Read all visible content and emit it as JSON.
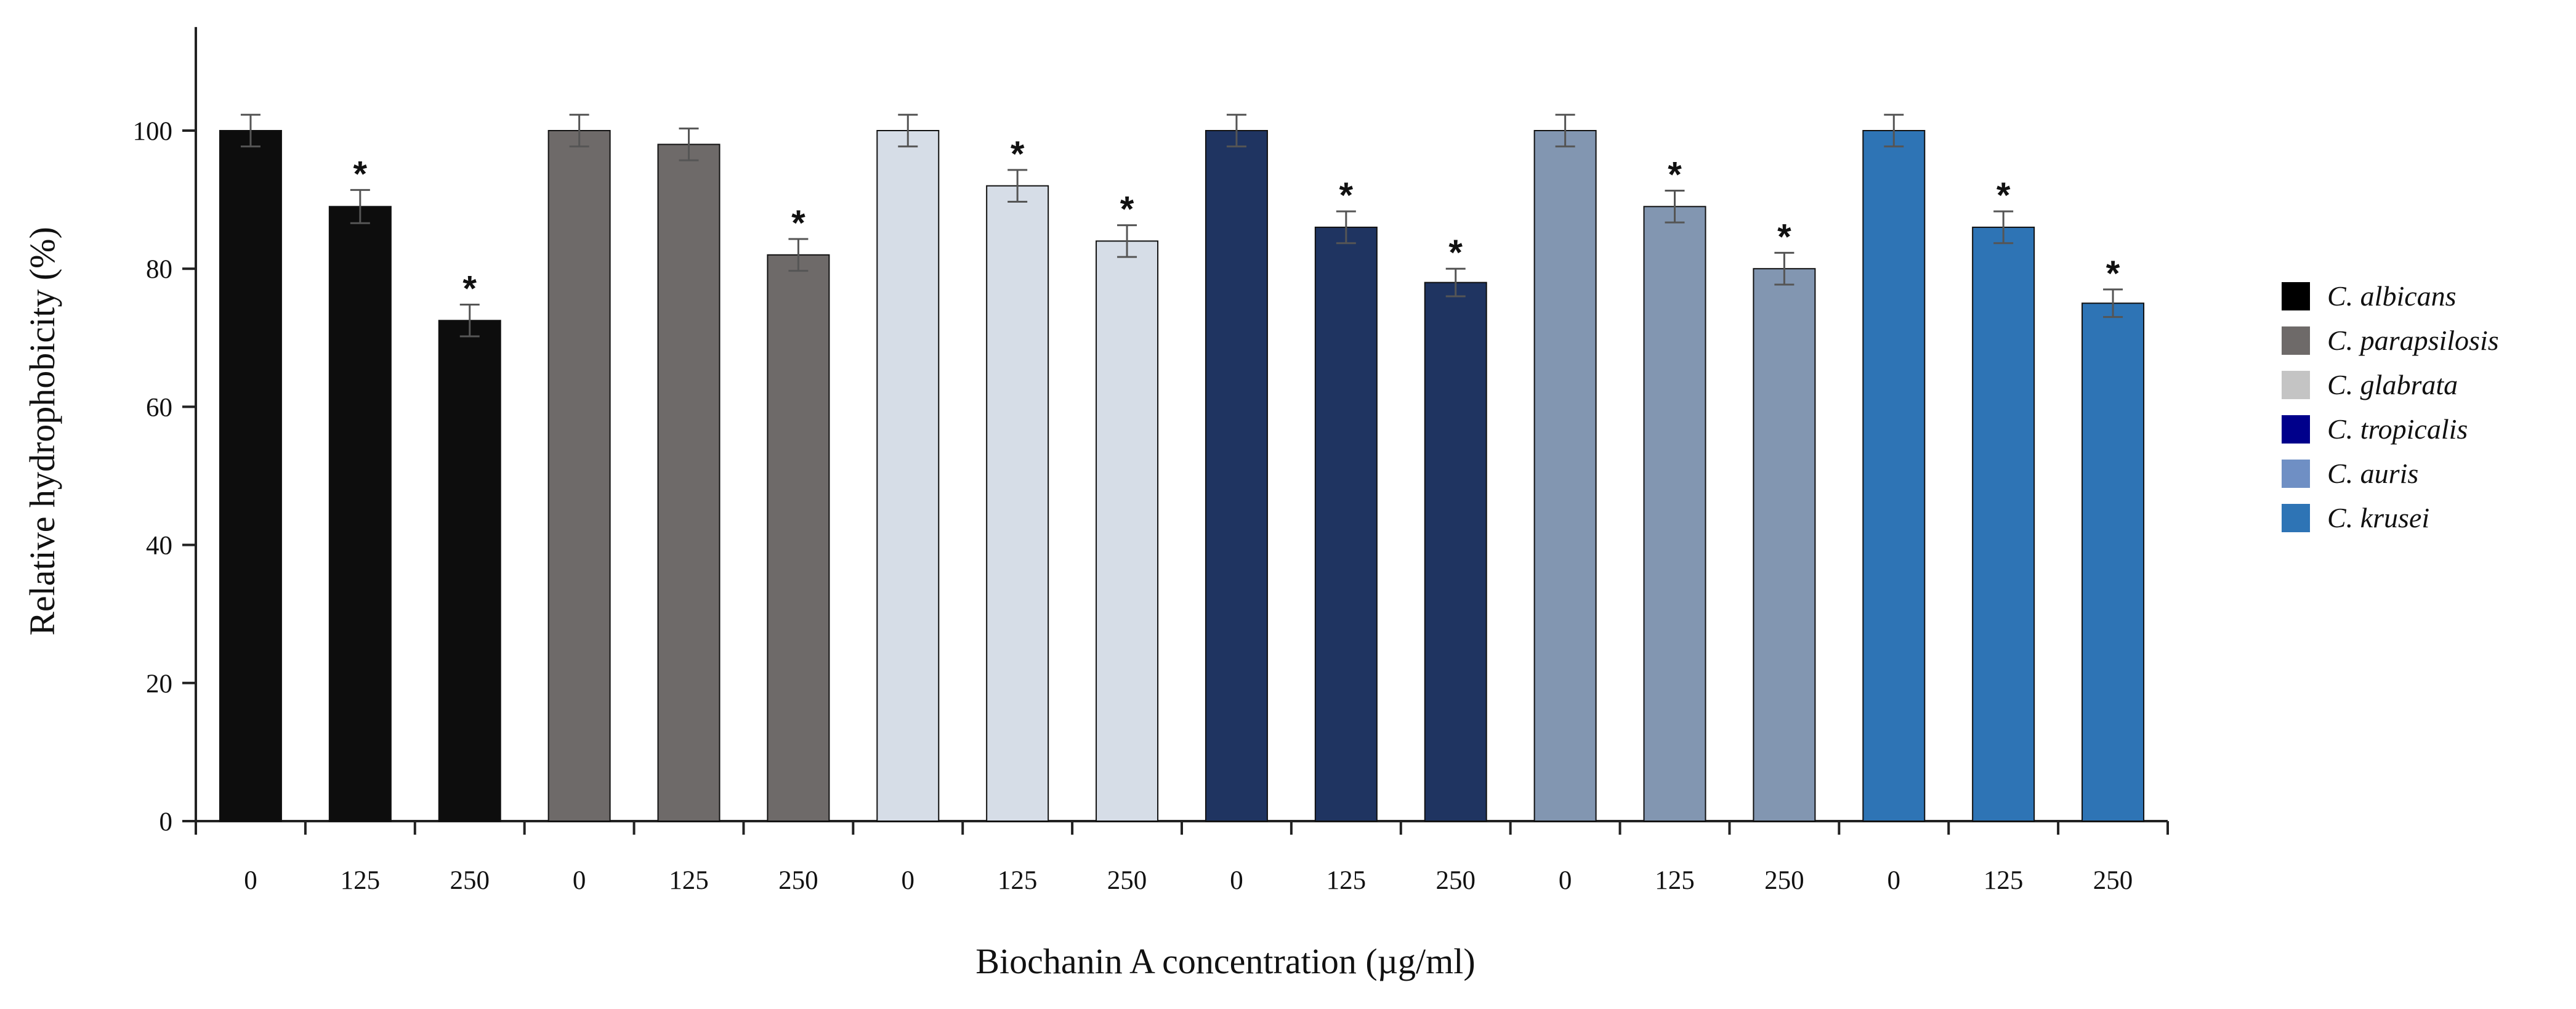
{
  "chart_data": {
    "type": "bar",
    "ylabel": "Relative hydrophobicity (%)",
    "xlabel": "Biochanin A concentration (µg/ml)",
    "ylim": [
      0,
      115
    ],
    "yticks": [
      0,
      20,
      40,
      60,
      80,
      100
    ],
    "significance_marker": "*",
    "series": [
      {
        "name": "C. albicans",
        "bar_color": "#0d0d0d",
        "legend_color": "#000000",
        "concentrations": [
          "0",
          "125",
          "250"
        ],
        "values": [
          100,
          89,
          72.5
        ],
        "errors": [
          2.3,
          2.4,
          2.3
        ],
        "significant": [
          false,
          true,
          true
        ]
      },
      {
        "name": "C. parapsilosis",
        "bar_color": "#6e6a69",
        "legend_color": "#6e6a69",
        "concentrations": [
          "0",
          "125",
          "250"
        ],
        "values": [
          100,
          98,
          82
        ],
        "errors": [
          2.3,
          2.3,
          2.3
        ],
        "significant": [
          false,
          false,
          true
        ]
      },
      {
        "name": "C. glabrata",
        "bar_color": "#d6dde7",
        "legend_color": "#c4c4c4",
        "concentrations": [
          "0",
          "125",
          "250"
        ],
        "values": [
          100,
          92,
          84
        ],
        "errors": [
          2.3,
          2.3,
          2.3
        ],
        "significant": [
          false,
          true,
          true
        ]
      },
      {
        "name": "C. tropicalis",
        "bar_color": "#1f3461",
        "legend_color": "#00008b",
        "concentrations": [
          "0",
          "125",
          "250"
        ],
        "values": [
          100,
          86,
          78
        ],
        "errors": [
          2.3,
          2.3,
          2.0
        ],
        "significant": [
          false,
          true,
          true
        ]
      },
      {
        "name": "C. auris",
        "bar_color": "#8296b1",
        "legend_color": "#6f8fc4",
        "concentrations": [
          "0",
          "125",
          "250"
        ],
        "values": [
          100,
          89,
          80
        ],
        "errors": [
          2.3,
          2.3,
          2.3
        ],
        "significant": [
          false,
          true,
          true
        ]
      },
      {
        "name": "C. krusei",
        "bar_color": "#2e74b5",
        "legend_color": "#2e74b5",
        "concentrations": [
          "0",
          "125",
          "250"
        ],
        "values": [
          100,
          86,
          75
        ],
        "errors": [
          2.3,
          2.3,
          2.0
        ],
        "significant": [
          false,
          true,
          true
        ]
      }
    ]
  }
}
